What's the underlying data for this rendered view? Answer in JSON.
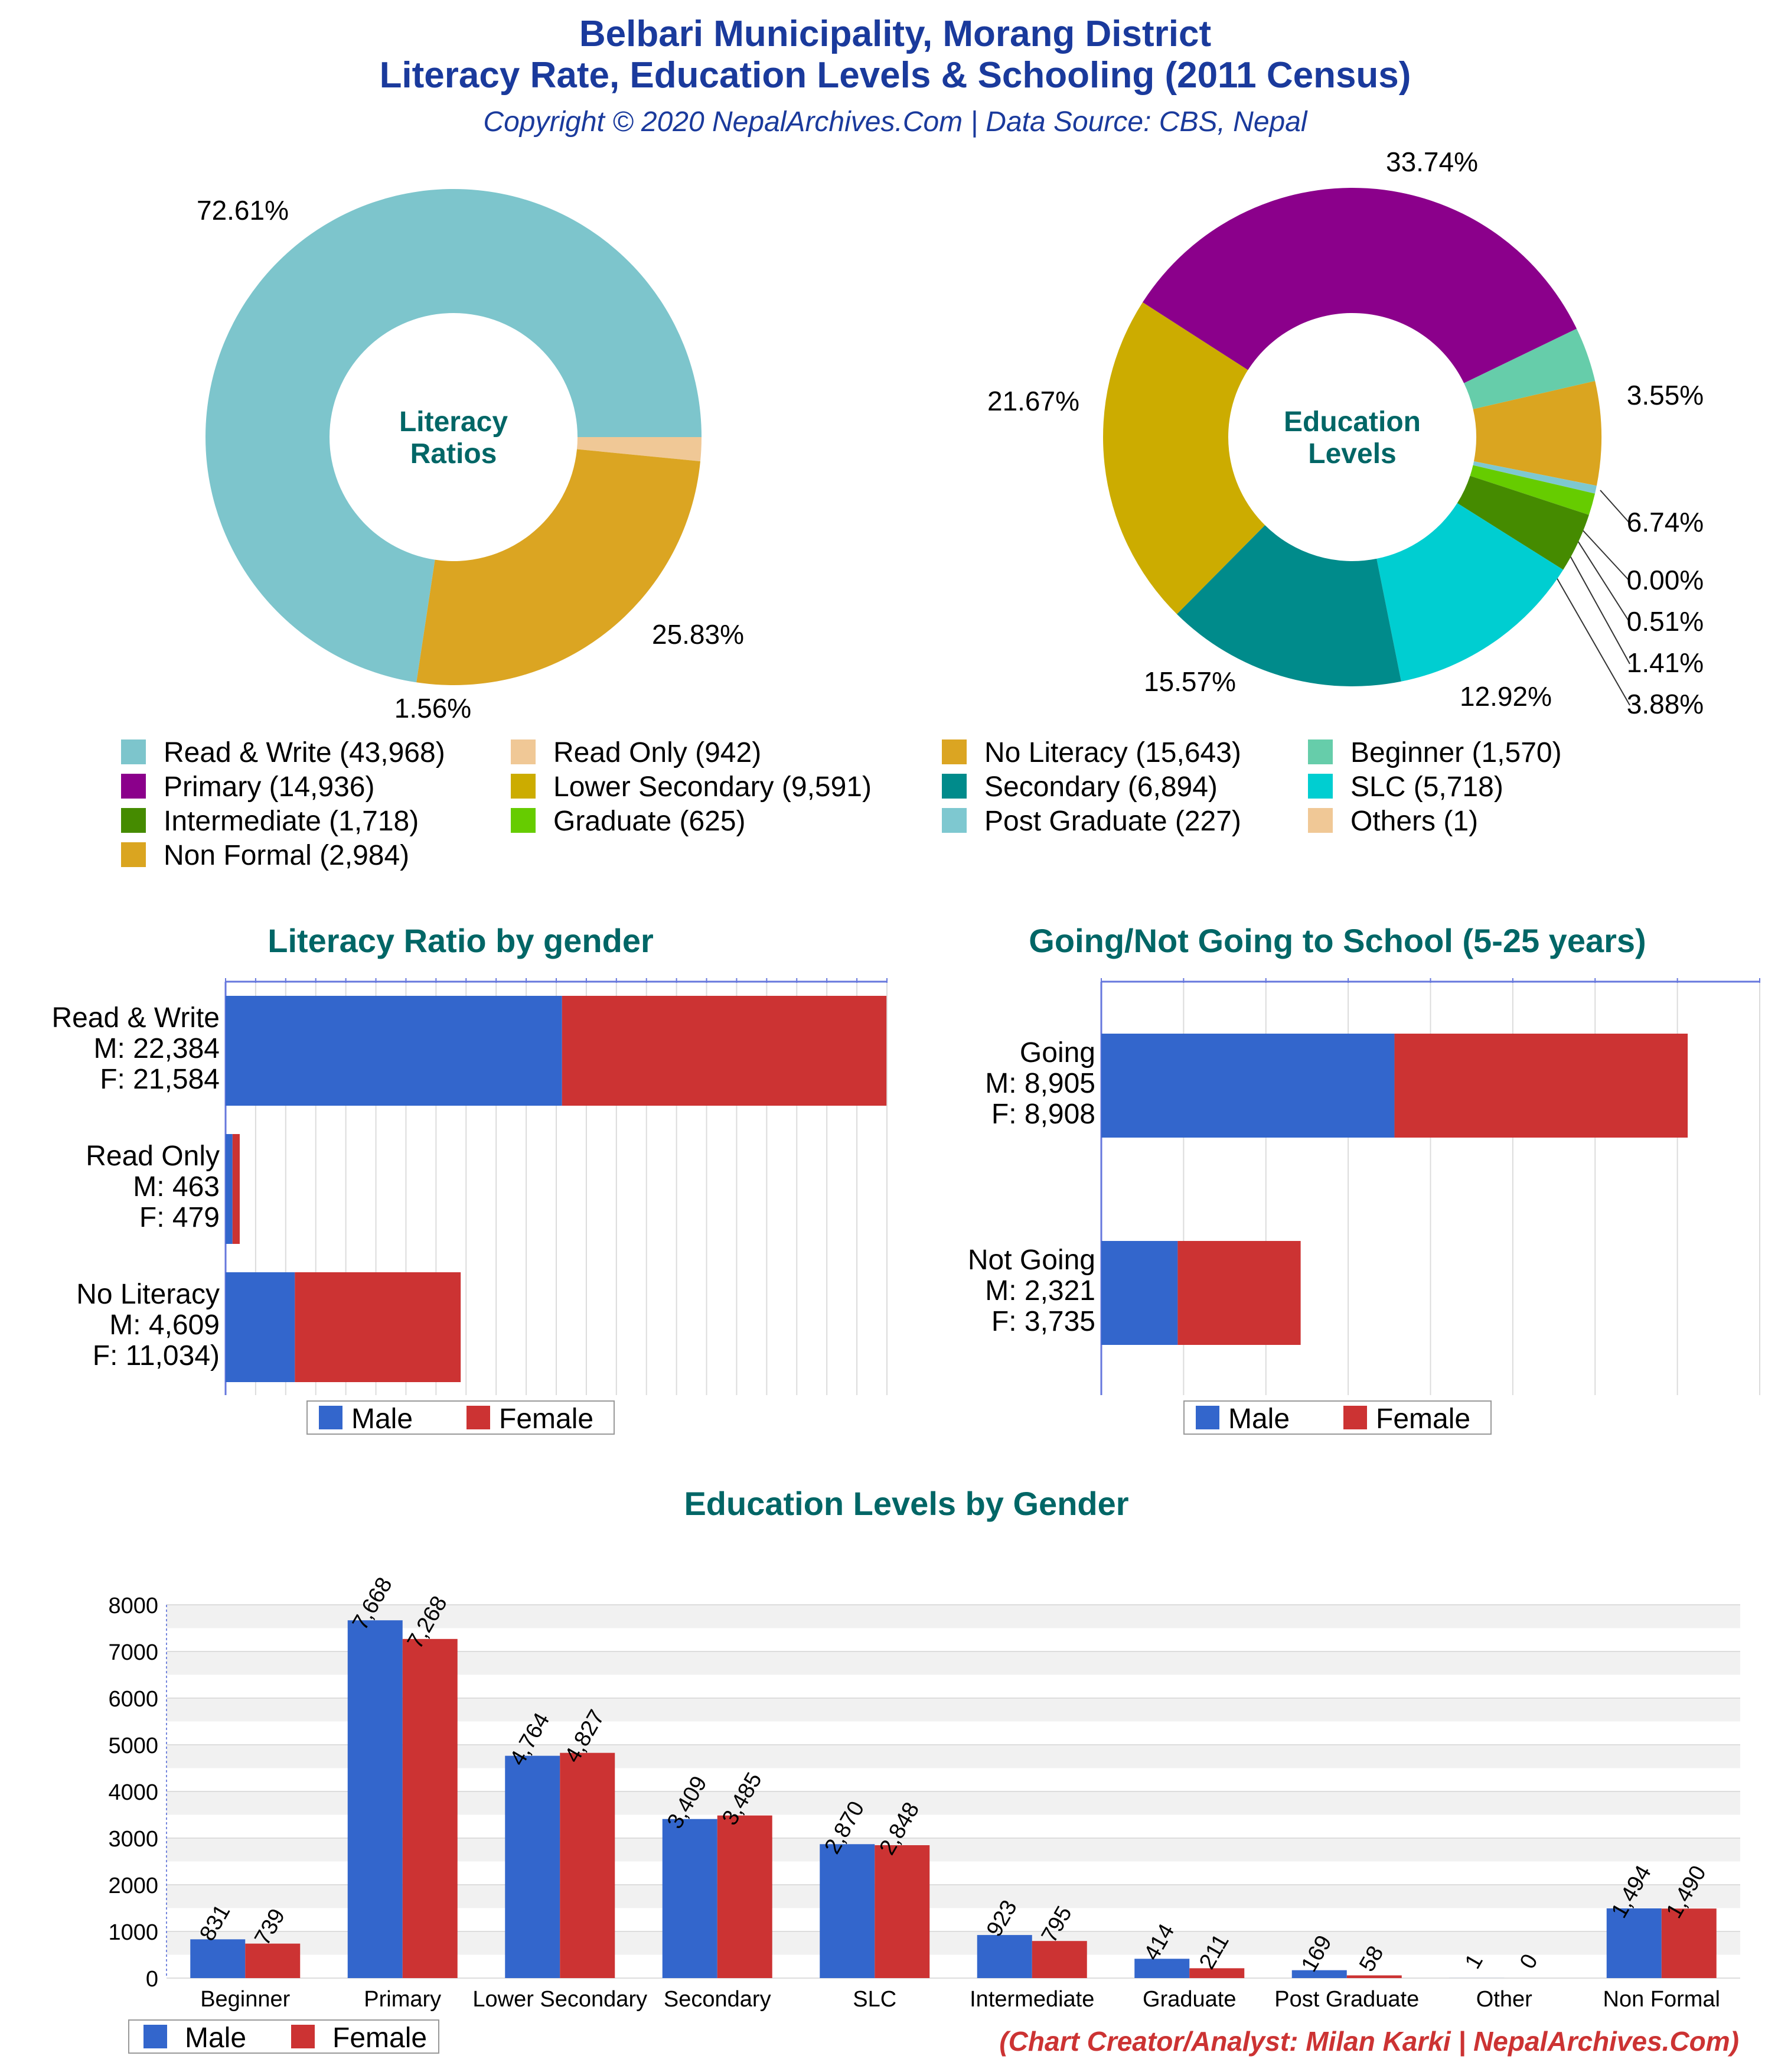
{
  "header": {
    "title_line1": "Belbari Municipality, Morang District",
    "title_line2": "Literacy Rate, Education Levels & Schooling (2011 Census)",
    "copyright": "Copyright © 2020 NepalArchives.Com | Data Source: CBS, Nepal"
  },
  "footer": {
    "credit": "(Chart Creator/Analyst: Milan Karki | NepalArchives.Com)"
  },
  "colors": {
    "title": "#1a3a9c",
    "section_title": "#006666",
    "male": "#3366cc",
    "female": "#cc3333",
    "credit": "#cc3333",
    "donut_center": "#006666"
  },
  "chart_data": [
    {
      "type": "pie",
      "center_label": [
        "Literacy",
        "Ratios"
      ],
      "slices": [
        {
          "label": "Read & Write (43,968)",
          "value": 43968,
          "percent_label": "72.61%",
          "color": "#7dc5cc"
        },
        {
          "label": "Read Only (942)",
          "value": 942,
          "percent_label": "1.56%",
          "color": "#f0c896"
        },
        {
          "label": "No Literacy (15,643)",
          "value": 15643,
          "percent_label": "25.83%",
          "color": "#dba522"
        }
      ]
    },
    {
      "type": "pie",
      "center_label": [
        "Education",
        "Levels"
      ],
      "slices": [
        {
          "label": "Beginner (1,570)",
          "value": 1570,
          "percent_label": "3.55%",
          "color": "#66cdaa"
        },
        {
          "label": "Non Formal (2,984)",
          "value": 2984,
          "percent_label": "6.74%",
          "color": "#daa520"
        },
        {
          "label": "Others (1)",
          "value": 1,
          "percent_label": "0.00%",
          "color": "#f0c896"
        },
        {
          "label": "Post Graduate (227)",
          "value": 227,
          "percent_label": "0.51%",
          "color": "#7ec8d0"
        },
        {
          "label": "Graduate (625)",
          "value": 625,
          "percent_label": "1.41%",
          "color": "#66cc00"
        },
        {
          "label": "Intermediate (1,718)",
          "value": 1718,
          "percent_label": "3.88%",
          "color": "#458b00"
        },
        {
          "label": "SLC (5,718)",
          "value": 5718,
          "percent_label": "12.92%",
          "color": "#00ced1"
        },
        {
          "label": "Secondary (6,894)",
          "value": 6894,
          "percent_label": "15.57%",
          "color": "#008b8b"
        },
        {
          "label": "Lower Secondary (9,591)",
          "value": 9591,
          "percent_label": "21.67%",
          "color": "#ccac00"
        },
        {
          "label": "Primary (14,936)",
          "value": 14936,
          "percent_label": "33.74%",
          "color": "#8b008b"
        }
      ]
    },
    {
      "type": "bar",
      "orientation": "horizontal",
      "stacked": true,
      "title": "Literacy Ratio by gender",
      "categories": [
        "Read & Write",
        "Read Only",
        "No Literacy"
      ],
      "category_labels": [
        [
          "Read & Write",
          "M: 22,384",
          "F: 21,584"
        ],
        [
          "Read Only",
          "M: 463",
          "F: 479"
        ],
        [
          "No Literacy",
          "M: 4,609",
          "F: 11,034)"
        ]
      ],
      "series": [
        {
          "name": "Male",
          "values": [
            22384,
            463,
            4609
          ]
        },
        {
          "name": "Female",
          "values": [
            21584,
            479,
            11034
          ]
        }
      ],
      "xlim": [
        0,
        44000
      ],
      "grid": true,
      "legend": "bottom"
    },
    {
      "type": "bar",
      "orientation": "horizontal",
      "stacked": true,
      "title": "Going/Not Going to School (5-25 years)",
      "categories": [
        "Going",
        "Not Going"
      ],
      "category_labels": [
        [
          "Going",
          "M: 8,905",
          "F: 8,908"
        ],
        [
          "Not Going",
          "M: 2,321",
          "F: 3,735"
        ]
      ],
      "series": [
        {
          "name": "Male",
          "values": [
            8905,
            2321
          ]
        },
        {
          "name": "Female",
          "values": [
            8908,
            3735
          ]
        }
      ],
      "xlim": [
        0,
        20000
      ],
      "grid": true,
      "legend": "bottom"
    },
    {
      "type": "bar",
      "title": "Education Levels by Gender",
      "categories": [
        "Beginner",
        "Primary",
        "Lower Secondary",
        "Secondary",
        "SLC",
        "Intermediate",
        "Graduate",
        "Post Graduate",
        "Other",
        "Non Formal"
      ],
      "series": [
        {
          "name": "Male",
          "values": [
            831,
            7668,
            4764,
            3409,
            2870,
            923,
            414,
            169,
            1,
            1494
          ],
          "labels": [
            "831",
            "7,668",
            "4,764",
            "3,409",
            "2,870",
            "923",
            "414",
            "169",
            "1",
            "1,494"
          ]
        },
        {
          "name": "Female",
          "values": [
            739,
            7268,
            4827,
            3485,
            2848,
            795,
            211,
            58,
            0,
            1490
          ],
          "labels": [
            "739",
            "7,268",
            "4,827",
            "3,485",
            "2,848",
            "795",
            "211",
            "58",
            "0",
            "1,490"
          ]
        }
      ],
      "ylim": [
        0,
        8000
      ],
      "yticks": [
        "0",
        "1000",
        "2000",
        "3000",
        "4000",
        "5000",
        "6000",
        "7000",
        "8000"
      ],
      "grid": true,
      "legend": "bottom-left"
    }
  ]
}
